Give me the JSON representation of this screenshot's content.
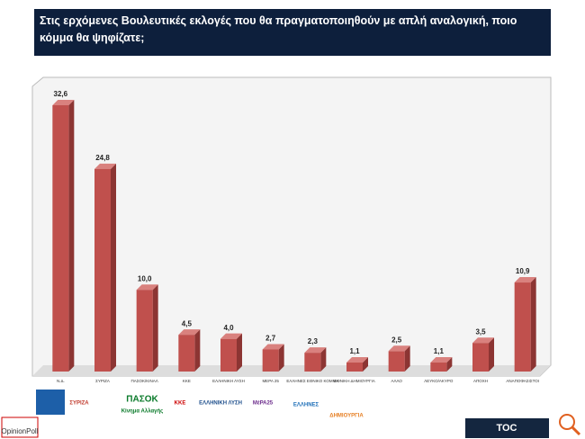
{
  "chart_data": {
    "type": "bar3d",
    "title": "Στις ερχόμενες Βουλευτικές εκλογές που θα πραγματοποιηθούν με απλή αναλογική, ποιο κόμμα θα ψηφίζατε;",
    "categories": [
      "Ν.Δ.",
      "ΣΥΡΙΖΑ",
      "ΠΑΣΟΚ/ΚΙΝΑΛ",
      "ΚΚΕ",
      "ΕΛΛΗΝΙΚΗ ΛΥΣΗ",
      "ΜΕΡΑ 25",
      "ΕΛΛΗΝΕΣ ΕΘΝΙΚΟ ΚΟΜΜΑ",
      "ΕΘΝΙΚΗ ΔΗΜΙΟΥΡΓΙΑ",
      "ΑΛΛΟ",
      "ΛΕΥΚΟ/ΑΚΥΡΟ",
      "ΑΠΟΧΗ",
      "ΑΝΑΠΟΦΑΣΙΣΤΟΙ"
    ],
    "values": [
      32.6,
      24.8,
      10.0,
      4.5,
      4.0,
      2.7,
      2.3,
      1.1,
      2.5,
      1.1,
      3.5,
      10.9
    ],
    "value_labels": [
      "32,6",
      "24,8",
      "10,0",
      "4,5",
      "4,0",
      "2,7",
      "2,3",
      "1,1",
      "2,5",
      "1,1",
      "3,5",
      "10,9"
    ],
    "color": "#c0504d"
  },
  "logos": [
    "ΣΥΡΙΖΑ",
    "ΠΑΣΟΚ",
    "Κίνημα Αλλαγής",
    "ΚΚΕ",
    "ΕΛΛΗΝΙΚΗ ΛΥΣΗ",
    "ΜέΡΑ25",
    "ΕΛΛΗΝΕΣ",
    "ΔΗΜΙΟΥΡΓΙΑ"
  ],
  "footer": {
    "left": "OpinionPoll",
    "right": "TOC"
  }
}
